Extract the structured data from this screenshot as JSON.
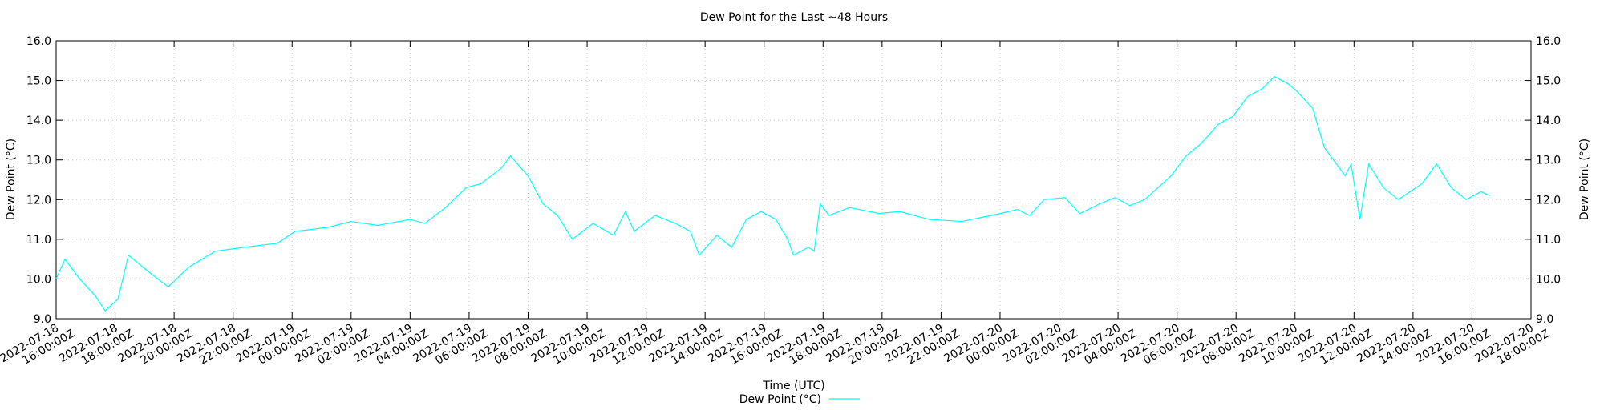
{
  "chart_data": {
    "type": "line",
    "title": "Dew Point for the Last ~48 Hours",
    "xlabel": "Time (UTC)",
    "ylabel": "Dew Point (°C)",
    "y2label": "Dew Point (°C)",
    "grid": true,
    "legend": "bottom",
    "xlim": [
      "2022-07-18T16:00:00Z",
      "2022-07-20T18:00:00Z"
    ],
    "xticks": [
      {
        "value": "2022-07-18T16:00:00Z",
        "label": "2022-07-18 16:00:00Z"
      },
      {
        "value": "2022-07-18T18:00:00Z",
        "label": "2022-07-18 18:00:00Z"
      },
      {
        "value": "2022-07-18T20:00:00Z",
        "label": "2022-07-18 20:00:00Z"
      },
      {
        "value": "2022-07-18T22:00:00Z",
        "label": "2022-07-18 22:00:00Z"
      },
      {
        "value": "2022-07-19T00:00:00Z",
        "label": "2022-07-19 00:00:00Z"
      },
      {
        "value": "2022-07-19T02:00:00Z",
        "label": "2022-07-19 02:00:00Z"
      },
      {
        "value": "2022-07-19T04:00:00Z",
        "label": "2022-07-19 04:00:00Z"
      },
      {
        "value": "2022-07-19T06:00:00Z",
        "label": "2022-07-19 06:00:00Z"
      },
      {
        "value": "2022-07-19T08:00:00Z",
        "label": "2022-07-19 08:00:00Z"
      },
      {
        "value": "2022-07-19T10:00:00Z",
        "label": "2022-07-19 10:00:00Z"
      },
      {
        "value": "2022-07-19T12:00:00Z",
        "label": "2022-07-19 12:00:00Z"
      },
      {
        "value": "2022-07-19T14:00:00Z",
        "label": "2022-07-19 14:00:00Z"
      },
      {
        "value": "2022-07-19T16:00:00Z",
        "label": "2022-07-19 16:00:00Z"
      },
      {
        "value": "2022-07-19T18:00:00Z",
        "label": "2022-07-19 18:00:00Z"
      },
      {
        "value": "2022-07-19T20:00:00Z",
        "label": "2022-07-19 20:00:00Z"
      },
      {
        "value": "2022-07-19T22:00:00Z",
        "label": "2022-07-19 22:00:00Z"
      },
      {
        "value": "2022-07-20T00:00:00Z",
        "label": "2022-07-20 00:00:00Z"
      },
      {
        "value": "2022-07-20T02:00:00Z",
        "label": "2022-07-20 02:00:00Z"
      },
      {
        "value": "2022-07-20T04:00:00Z",
        "label": "2022-07-20 04:00:00Z"
      },
      {
        "value": "2022-07-20T06:00:00Z",
        "label": "2022-07-20 06:00:00Z"
      },
      {
        "value": "2022-07-20T08:00:00Z",
        "label": "2022-07-20 08:00:00Z"
      },
      {
        "value": "2022-07-20T10:00:00Z",
        "label": "2022-07-20 10:00:00Z"
      },
      {
        "value": "2022-07-20T12:00:00Z",
        "label": "2022-07-20 12:00:00Z"
      },
      {
        "value": "2022-07-20T14:00:00Z",
        "label": "2022-07-20 14:00:00Z"
      },
      {
        "value": "2022-07-20T16:00:00Z",
        "label": "2022-07-20 16:00:00Z"
      },
      {
        "value": "2022-07-20T18:00:00Z",
        "label": "2022-07-20 18:00:00Z"
      }
    ],
    "ylim": [
      9,
      16
    ],
    "yticks": [
      {
        "value": 9,
        "label": "9.0"
      },
      {
        "value": 10,
        "label": "10.0"
      },
      {
        "value": 11,
        "label": "11.0"
      },
      {
        "value": 12,
        "label": "12.0"
      },
      {
        "value": 13,
        "label": "13.0"
      },
      {
        "value": 14,
        "label": "14.0"
      },
      {
        "value": 15,
        "label": "15.0"
      },
      {
        "value": 16,
        "label": "16.0"
      }
    ],
    "y2lim": [
      9,
      16
    ],
    "y2ticks": [
      {
        "value": 9,
        "label": "9.0"
      },
      {
        "value": 10,
        "label": "10.0"
      },
      {
        "value": 11,
        "label": "11.0"
      },
      {
        "value": 12,
        "label": "12.0"
      },
      {
        "value": 13,
        "label": "13.0"
      },
      {
        "value": 14,
        "label": "14.0"
      },
      {
        "value": 15,
        "label": "15.0"
      },
      {
        "value": 16,
        "label": "16.0"
      }
    ],
    "x": [
      "2022-07-18T16:00:00Z",
      "2022-07-18T16:18:00Z",
      "2022-07-18T16:48:00Z",
      "2022-07-18T17:18:00Z",
      "2022-07-18T17:40:00Z",
      "2022-07-18T18:06:00Z",
      "2022-07-18T18:27:00Z",
      "2022-07-18T19:06:00Z",
      "2022-07-18T19:48:00Z",
      "2022-07-18T20:30:00Z",
      "2022-07-18T21:24:00Z",
      "2022-07-18T22:24:00Z",
      "2022-07-18T23:30:00Z",
      "2022-07-19T00:06:00Z",
      "2022-07-19T01:12:00Z",
      "2022-07-19T02:00:00Z",
      "2022-07-19T02:54:00Z",
      "2022-07-19T04:00:00Z",
      "2022-07-19T04:30:00Z",
      "2022-07-19T05:12:00Z",
      "2022-07-19T05:54:00Z",
      "2022-07-19T06:24:00Z",
      "2022-07-19T07:06:00Z",
      "2022-07-19T07:24:00Z",
      "2022-07-19T08:00:00Z",
      "2022-07-19T08:30:00Z",
      "2022-07-19T09:00:00Z",
      "2022-07-19T09:30:00Z",
      "2022-07-19T10:12:00Z",
      "2022-07-19T10:54:00Z",
      "2022-07-19T11:18:00Z",
      "2022-07-19T11:36:00Z",
      "2022-07-19T12:18:00Z",
      "2022-07-19T13:00:00Z",
      "2022-07-19T13:30:00Z",
      "2022-07-19T13:48:00Z",
      "2022-07-19T14:24:00Z",
      "2022-07-19T14:54:00Z",
      "2022-07-19T15:24:00Z",
      "2022-07-19T15:54:00Z",
      "2022-07-19T16:24:00Z",
      "2022-07-19T16:48:00Z",
      "2022-07-19T17:00:00Z",
      "2022-07-19T17:30:00Z",
      "2022-07-19T17:42:00Z",
      "2022-07-19T17:54:00Z",
      "2022-07-19T18:12:00Z",
      "2022-07-19T18:54:00Z",
      "2022-07-19T19:54:00Z",
      "2022-07-19T20:36:00Z",
      "2022-07-19T21:36:00Z",
      "2022-07-19T22:42:00Z",
      "2022-07-19T23:42:00Z",
      "2022-07-20T00:36:00Z",
      "2022-07-20T01:00:00Z",
      "2022-07-20T01:30:00Z",
      "2022-07-20T02:12:00Z",
      "2022-07-20T02:42:00Z",
      "2022-07-20T03:24:00Z",
      "2022-07-20T03:54:00Z",
      "2022-07-20T04:24:00Z",
      "2022-07-20T04:54:00Z",
      "2022-07-20T05:48:00Z",
      "2022-07-20T06:18:00Z",
      "2022-07-20T06:48:00Z",
      "2022-07-20T07:24:00Z",
      "2022-07-20T07:54:00Z",
      "2022-07-20T08:24:00Z",
      "2022-07-20T08:54:00Z",
      "2022-07-20T09:18:00Z",
      "2022-07-20T09:48:00Z",
      "2022-07-20T10:06:00Z",
      "2022-07-20T10:36:00Z",
      "2022-07-20T11:00:00Z",
      "2022-07-20T11:42:00Z",
      "2022-07-20T11:54:00Z",
      "2022-07-20T12:12:00Z",
      "2022-07-20T12:30:00Z",
      "2022-07-20T13:00:00Z",
      "2022-07-20T13:30:00Z",
      "2022-07-20T14:18:00Z",
      "2022-07-20T14:48:00Z",
      "2022-07-20T15:18:00Z",
      "2022-07-20T15:48:00Z",
      "2022-07-20T16:18:00Z",
      "2022-07-20T16:36:00Z"
    ],
    "series": [
      {
        "name": "Dew Point (°C)",
        "color": "#00ffff",
        "values": [
          10.0,
          10.5,
          10.0,
          9.6,
          9.2,
          9.5,
          10.6,
          10.2,
          9.8,
          10.3,
          10.7,
          10.8,
          10.9,
          11.2,
          11.3,
          11.45,
          11.35,
          11.5,
          11.4,
          11.8,
          12.3,
          12.4,
          12.8,
          13.1,
          12.6,
          11.9,
          11.6,
          11.0,
          11.4,
          11.1,
          11.7,
          11.2,
          11.6,
          11.4,
          11.2,
          10.6,
          11.1,
          10.8,
          11.5,
          11.7,
          11.5,
          11.0,
          10.6,
          10.8,
          10.7,
          11.9,
          11.6,
          11.8,
          11.65,
          11.7,
          11.5,
          11.45,
          11.6,
          11.75,
          11.6,
          12.0,
          12.05,
          11.65,
          11.9,
          12.05,
          11.85,
          12.0,
          12.6,
          13.1,
          13.4,
          13.9,
          14.1,
          14.6,
          14.8,
          15.1,
          14.9,
          14.7,
          14.3,
          13.3,
          12.6,
          12.9,
          11.5,
          12.9,
          12.3,
          12.0,
          12.4,
          12.9,
          12.3,
          12.0,
          12.2,
          12.1
        ]
      }
    ]
  }
}
